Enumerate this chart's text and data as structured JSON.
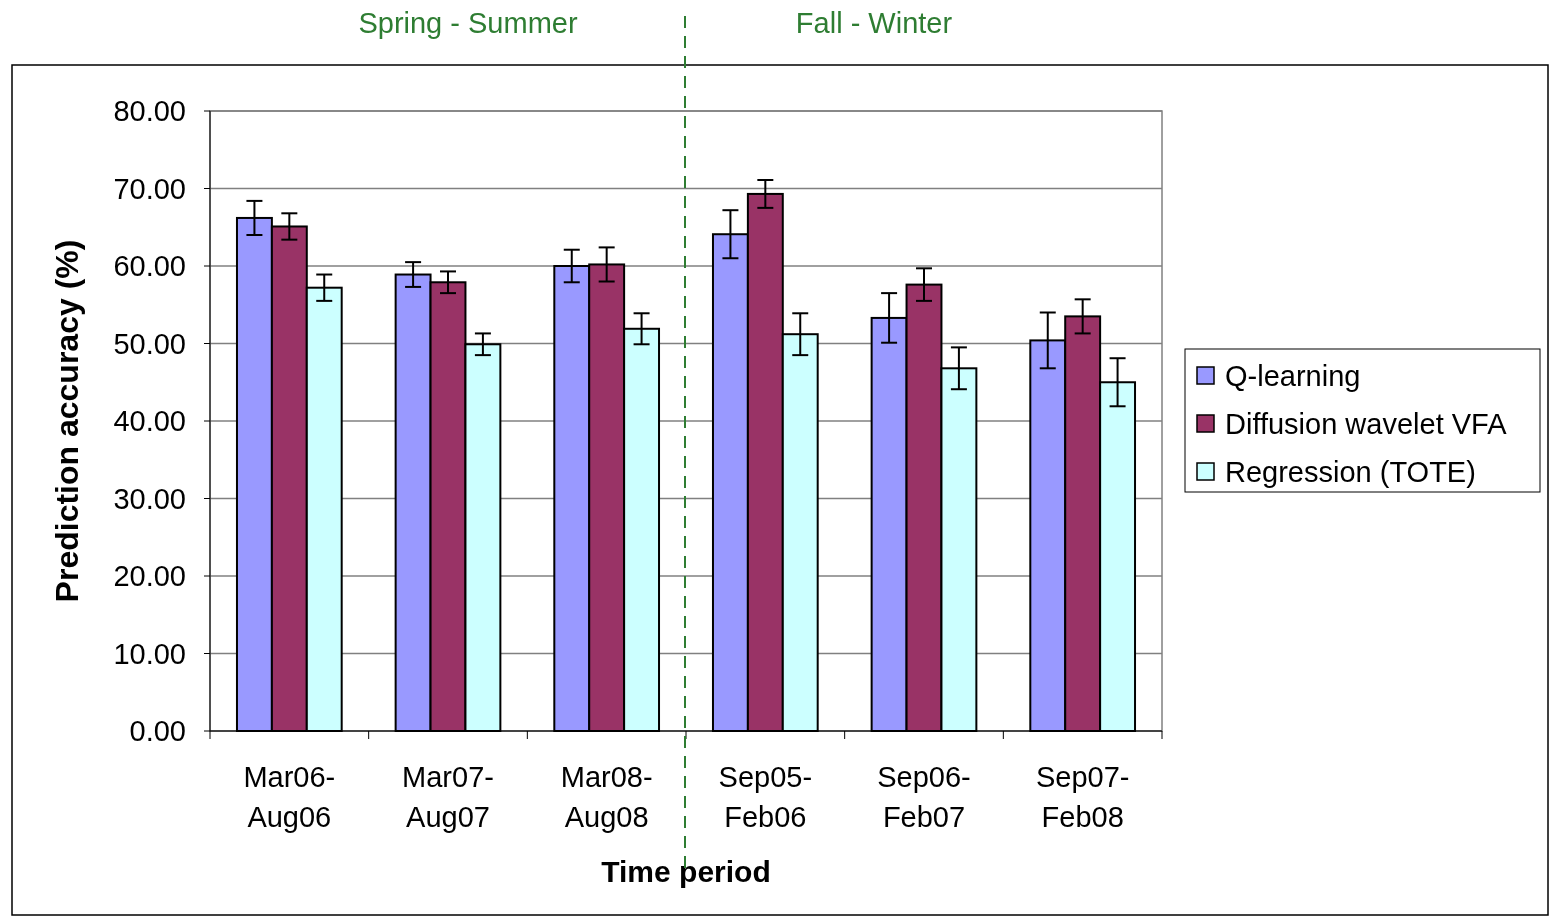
{
  "chart_data": {
    "type": "bar",
    "xlabel": "Time period",
    "ylabel": "Prediction accuracy (%)",
    "categories": [
      "Mar06-\nAug06",
      "Mar07-\nAug07",
      "Mar08-\nAug08",
      "Sep05-\nFeb06",
      "Sep06-\nFeb07",
      "Sep07-\nFeb08"
    ],
    "series": [
      {
        "name": "Q-learning",
        "color": "#9999ff",
        "values": [
          66.2,
          58.9,
          60.0,
          64.1,
          53.3,
          50.4
        ],
        "errors": [
          2.2,
          1.6,
          2.1,
          3.1,
          3.2,
          3.6
        ]
      },
      {
        "name": "Diffusion wavelet VFA",
        "color": "#993366",
        "values": [
          65.1,
          57.9,
          60.2,
          69.3,
          57.6,
          53.5
        ],
        "errors": [
          1.7,
          1.4,
          2.2,
          1.8,
          2.1,
          2.2
        ]
      },
      {
        "name": "Regression (TOTE)",
        "color": "#ccffff",
        "values": [
          57.2,
          49.9,
          51.9,
          51.2,
          46.8,
          45.0
        ],
        "errors": [
          1.7,
          1.4,
          2.0,
          2.7,
          2.7,
          3.1
        ]
      }
    ],
    "ylim": [
      0,
      80
    ],
    "yticks": [
      {
        "value": 0,
        "label": "0.00"
      },
      {
        "value": 10,
        "label": "10.00"
      },
      {
        "value": 20,
        "label": "20.00"
      },
      {
        "value": 30,
        "label": "30.00"
      },
      {
        "value": 40,
        "label": "40.00"
      },
      {
        "value": 50,
        "label": "50.00"
      },
      {
        "value": 60,
        "label": "60.00"
      },
      {
        "value": 70,
        "label": "70.00"
      },
      {
        "value": 80,
        "label": "80.00"
      }
    ],
    "grid": "y",
    "legend": "right",
    "annotations": [
      "Spring - Summer",
      "Fall - Winter"
    ]
  }
}
